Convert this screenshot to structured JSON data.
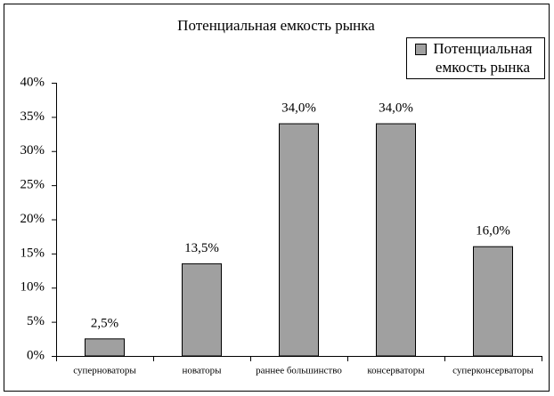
{
  "chart_data": {
    "type": "bar",
    "title": "Потенциальная емкость рынка",
    "categories": [
      "суперноваторы",
      "новаторы",
      "раннее большинство",
      "консерваторы",
      "суперконсерваторы"
    ],
    "series": [
      {
        "name": "Потенциальная емкость рынка",
        "color": "#a0a0a0",
        "values": [
          2.5,
          13.5,
          34,
          34,
          16
        ],
        "value_labels": [
          "2,5%",
          "13,5%",
          "34,0%",
          "34,0%",
          "16,0%"
        ]
      }
    ],
    "ylim": [
      0,
      40
    ],
    "yticks": [
      {
        "value": 0,
        "label": "0%"
      },
      {
        "value": 5,
        "label": "5%"
      },
      {
        "value": 10,
        "label": "10%"
      },
      {
        "value": 15,
        "label": "15%"
      },
      {
        "value": 20,
        "label": "20%"
      },
      {
        "value": 25,
        "label": "25%"
      },
      {
        "value": 30,
        "label": "30%"
      },
      {
        "value": 35,
        "label": "35%"
      },
      {
        "value": 40,
        "label": "40%"
      }
    ],
    "grid": false,
    "legend": "upper right"
  }
}
